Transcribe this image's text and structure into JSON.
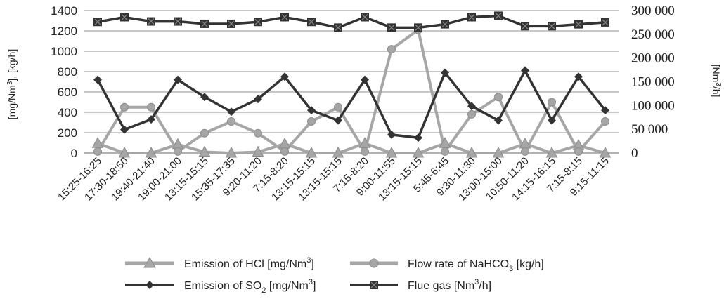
{
  "chart_data": {
    "type": "line",
    "categories": [
      "15:25-16:25",
      "17:30-18:50",
      "19:40-21:40",
      "19:00-21:00",
      "13:15-15:15",
      "15:35-17:35",
      "9:20-11:20",
      "7:15-8:20",
      "13:15-15:15",
      "13:15-15:15",
      "7:15-8:20",
      "9:00-11:55",
      "13:15-15:15",
      "5:45-6:45",
      "9:30-11:30",
      "13:00-15:00",
      "10:50-11:20",
      "14:15-16:15",
      "7:15-8:15",
      "9:15-11:15"
    ],
    "left_axis": {
      "label_main": "[mg/Nm",
      "label_sup": "3",
      "label_rest": "], [kg/h]",
      "ylim": [
        0,
        1400
      ],
      "ticks": [
        "0",
        "200",
        "400",
        "600",
        "800",
        "1000",
        "1200",
        "1400"
      ]
    },
    "right_axis": {
      "label_main": "[Nm",
      "label_sup": "3",
      "label_rest": "/h]",
      "ylim": [
        0,
        300000
      ],
      "ticks": [
        "0",
        "50 000",
        "100 000",
        "150 000",
        "200 000",
        "250 000",
        "300 000"
      ]
    },
    "grid": true,
    "legend_position": "bottom",
    "series": [
      {
        "key": "hcl",
        "label_main": "Emission of HCl [mg/Nm",
        "label_sup": "3",
        "label_rest": "]",
        "axis": "left",
        "color": "#a6a6a6",
        "marker": "triangle",
        "values": [
          95,
          0,
          0,
          85,
          10,
          0,
          10,
          90,
          0,
          0,
          95,
          0,
          0,
          95,
          0,
          0,
          90,
          0,
          75,
          0
        ]
      },
      {
        "key": "nahco3",
        "label_main": "Flow rate of NaHCO",
        "label_sub": "3",
        "label_rest": " [kg/h]",
        "axis": "left",
        "color": "#a6a6a6",
        "marker": "circle",
        "values": [
          15,
          450,
          450,
          15,
          195,
          310,
          195,
          15,
          310,
          450,
          15,
          1020,
          1210,
          15,
          380,
          550,
          15,
          500,
          15,
          310
        ]
      },
      {
        "key": "so2",
        "label_main": "Emission of SO",
        "label_sub": "2",
        "label_rest": " [mg/Nm",
        "label_sup2": "3",
        "label_rest2": "]",
        "axis": "left",
        "color": "#333333",
        "marker": "diamond",
        "values": [
          720,
          230,
          330,
          720,
          550,
          405,
          530,
          750,
          420,
          320,
          720,
          180,
          150,
          790,
          460,
          320,
          810,
          320,
          750,
          420
        ]
      },
      {
        "key": "flue",
        "label_main": "Flue gas [Nm",
        "label_sup": "3",
        "label_rest": "/h]",
        "axis": "right",
        "color": "#333333",
        "marker": "square-x",
        "values": [
          276000,
          286000,
          277000,
          277000,
          272000,
          272000,
          276000,
          286000,
          276000,
          264000,
          286000,
          264000,
          264000,
          271000,
          286000,
          289000,
          267000,
          267000,
          271000,
          275000
        ]
      }
    ]
  }
}
